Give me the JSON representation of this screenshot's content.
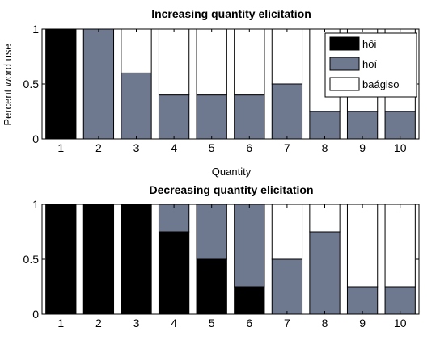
{
  "chart_data": [
    {
      "type": "bar",
      "stacked": true,
      "title": "Increasing quantity elicitation",
      "xlabel": "Quantity",
      "ylabel": "Percent word use",
      "categories": [
        "1",
        "2",
        "3",
        "4",
        "5",
        "6",
        "7",
        "8",
        "9",
        "10"
      ],
      "ylim": [
        0,
        1
      ],
      "yticks": [
        "0",
        "0.5",
        "1"
      ],
      "series": [
        {
          "name": "hôi",
          "values": [
            1,
            0,
            0,
            0,
            0,
            0,
            0,
            0,
            0,
            0
          ]
        },
        {
          "name": "hoí",
          "values": [
            0,
            1,
            0.6,
            0.4,
            0.4,
            0.4,
            0.5,
            0.25,
            0.25,
            0.25
          ]
        },
        {
          "name": "baágiso",
          "values": [
            0,
            0,
            0.4,
            0.6,
            0.6,
            0.6,
            0.5,
            0.75,
            0.75,
            0.75
          ]
        }
      ],
      "legend": "top-right",
      "grid": false
    },
    {
      "type": "bar",
      "stacked": true,
      "title": "Decreasing quantity elicitation",
      "xlabel": "",
      "ylabel": "",
      "categories": [
        "1",
        "2",
        "3",
        "4",
        "5",
        "6",
        "7",
        "8",
        "9",
        "10"
      ],
      "ylim": [
        0,
        1
      ],
      "yticks": [
        "0",
        "0.5",
        "1"
      ],
      "series": [
        {
          "name": "hôi",
          "values": [
            1,
            1,
            1,
            0.75,
            0.5,
            0.25,
            0,
            0,
            0,
            0
          ]
        },
        {
          "name": "hoí",
          "values": [
            0,
            0,
            0,
            0.25,
            0.5,
            0.75,
            0.5,
            0.75,
            0.25,
            0.25
          ]
        },
        {
          "name": "baágiso",
          "values": [
            0,
            0,
            0,
            0,
            0,
            0,
            0.5,
            0.25,
            0.75,
            0.75
          ]
        }
      ],
      "legend": "none",
      "grid": false
    }
  ],
  "colors": {
    "hôi": "#000000",
    "hoí": "#6e788e",
    "baágiso": "#ffffff"
  }
}
